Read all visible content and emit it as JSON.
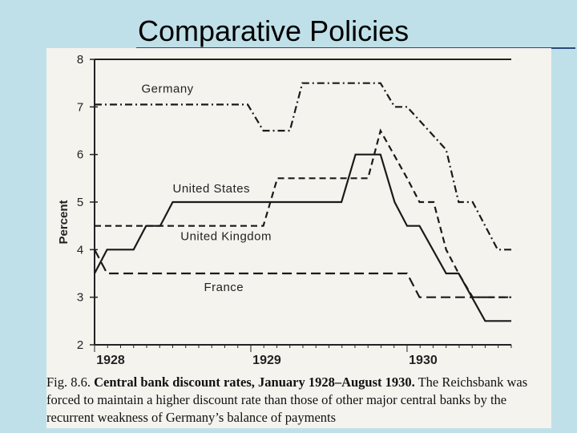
{
  "slide": {
    "title": "Comparative Policies"
  },
  "chart_data": {
    "type": "line",
    "ylabel": "Percent",
    "ylim": [
      2,
      8
    ],
    "yticks": [
      "2",
      "3",
      "4",
      "5",
      "6",
      "7",
      "8"
    ],
    "xlim": [
      1928.0,
      1930.667
    ],
    "xticks": [
      {
        "label": "1928",
        "x": 1928.0
      },
      {
        "label": "1929",
        "x": 1929.0
      },
      {
        "label": "1930",
        "x": 1930.0
      }
    ],
    "series": [
      {
        "name": "Germany",
        "style": "dash-dot",
        "label_at": [
          1928.3,
          7.3
        ],
        "points": [
          [
            1928.0,
            7.05
          ],
          [
            1928.98,
            7.05
          ],
          [
            1929.08,
            6.5
          ],
          [
            1929.25,
            6.5
          ],
          [
            1929.33,
            7.5
          ],
          [
            1929.42,
            7.5
          ],
          [
            1929.83,
            7.5
          ],
          [
            1929.92,
            7.0
          ],
          [
            1930.0,
            7.0
          ],
          [
            1930.25,
            6.1
          ],
          [
            1930.33,
            5.0
          ],
          [
            1930.42,
            5.0
          ],
          [
            1930.58,
            4.0
          ],
          [
            1930.667,
            4.0
          ]
        ]
      },
      {
        "name": "United States",
        "style": "solid",
        "label_at": [
          1928.5,
          5.2
        ],
        "points": [
          [
            1928.0,
            3.5
          ],
          [
            1928.08,
            4.0
          ],
          [
            1928.25,
            4.0
          ],
          [
            1928.33,
            4.5
          ],
          [
            1928.42,
            4.5
          ],
          [
            1928.5,
            5.0
          ],
          [
            1928.58,
            5.0
          ],
          [
            1929.58,
            5.0
          ],
          [
            1929.67,
            6.0
          ],
          [
            1929.75,
            6.0
          ],
          [
            1929.83,
            6.0
          ],
          [
            1929.92,
            5.0
          ],
          [
            1930.0,
            4.5
          ],
          [
            1930.08,
            4.5
          ],
          [
            1930.25,
            3.5
          ],
          [
            1930.33,
            3.5
          ],
          [
            1930.5,
            2.5
          ],
          [
            1930.667,
            2.5
          ]
        ]
      },
      {
        "name": "United Kingdom",
        "style": "dashed",
        "label_at": [
          1928.55,
          4.2
        ],
        "points": [
          [
            1928.0,
            4.5
          ],
          [
            1929.08,
            4.5
          ],
          [
            1929.17,
            5.5
          ],
          [
            1929.25,
            5.5
          ],
          [
            1929.75,
            5.5
          ],
          [
            1929.83,
            6.5
          ],
          [
            1930.0,
            5.5
          ],
          [
            1930.08,
            5.0
          ],
          [
            1930.17,
            5.0
          ],
          [
            1930.25,
            4.0
          ],
          [
            1930.33,
            3.5
          ],
          [
            1930.42,
            3.0
          ],
          [
            1930.667,
            3.0
          ]
        ]
      },
      {
        "name": "France",
        "style": "long-dash",
        "label_at": [
          1928.7,
          3.13
        ],
        "points": [
          [
            1928.0,
            4.0
          ],
          [
            1928.08,
            3.5
          ],
          [
            1930.0,
            3.5
          ],
          [
            1930.08,
            3.0
          ],
          [
            1930.667,
            3.0
          ]
        ]
      }
    ]
  },
  "caption": {
    "fig": "Fig. 8.6.",
    "bold": "Central bank discount rates, January 1928–August 1930.",
    "rest": "The Reichsbank was forced to maintain a higher discount rate than those of other major central banks by the recurrent weakness of Germany’s balance of payments"
  }
}
